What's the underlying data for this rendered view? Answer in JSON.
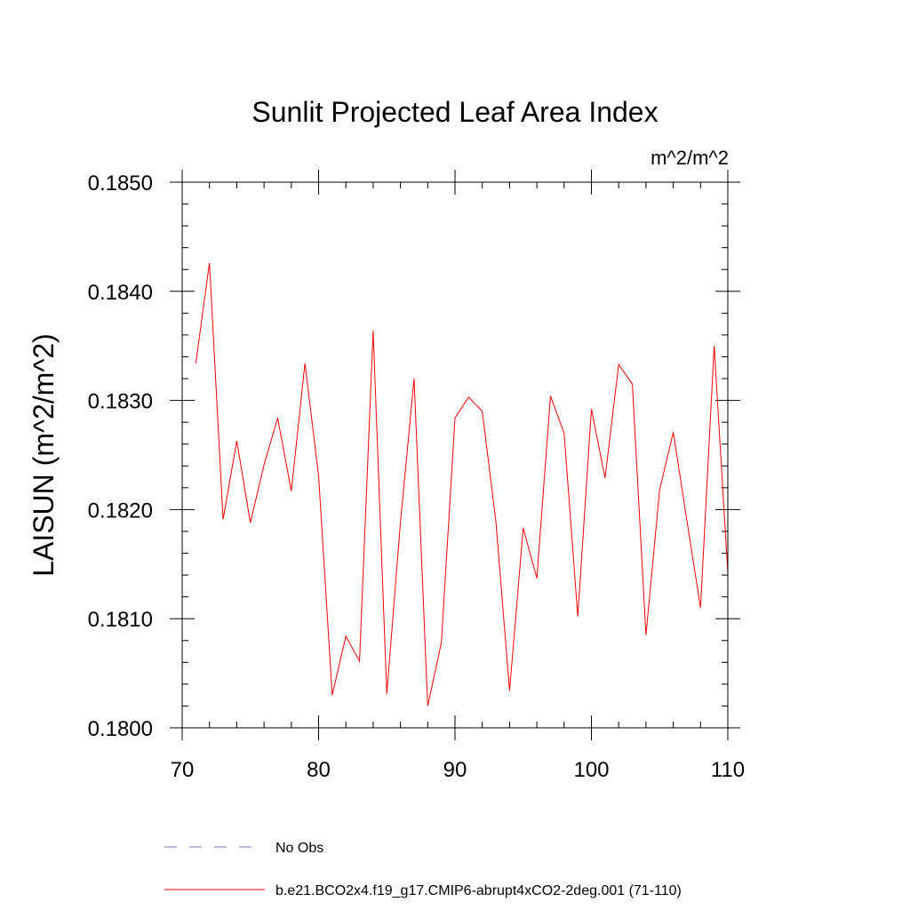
{
  "chart_data": {
    "type": "line",
    "title": "Sunlit Projected Leaf Area Index",
    "units": "m^2/m^2",
    "ylabel": "LAISUN  (m^2/m^2)",
    "xlabel": "",
    "xlim": [
      70,
      110
    ],
    "ylim": [
      0.18,
      0.185
    ],
    "xticks": [
      "70",
      "80",
      "90",
      "100",
      "110"
    ],
    "yticks": [
      "0.1800",
      "0.1810",
      "0.1820",
      "0.1830",
      "0.1840",
      "0.1850"
    ],
    "grid": false,
    "legend_position": "bottom",
    "series": [
      {
        "name": "No Obs",
        "color": "#7b74c4",
        "style": "dashed",
        "x": [],
        "values": []
      },
      {
        "name": "b.e21.BCO2x4.f19_g17.CMIP6-abrupt4xCO2-2deg.001 (71-110)",
        "color": "#ff0000",
        "style": "solid",
        "x": [
          71,
          72,
          73,
          74,
          75,
          76,
          77,
          78,
          79,
          80,
          81,
          82,
          83,
          84,
          85,
          86,
          87,
          88,
          89,
          90,
          91,
          92,
          93,
          94,
          95,
          96,
          97,
          98,
          99,
          100,
          101,
          102,
          103,
          104,
          105,
          106,
          107,
          108,
          109,
          110
        ],
        "values": [
          0.18334,
          0.18426,
          0.18191,
          0.18263,
          0.18188,
          0.18241,
          0.18284,
          0.18217,
          0.18334,
          0.18231,
          0.1803,
          0.18084,
          0.18061,
          0.18364,
          0.18031,
          0.18188,
          0.1832,
          0.1802,
          0.18078,
          0.18284,
          0.18303,
          0.1829,
          0.18189,
          0.18034,
          0.18183,
          0.18137,
          0.18304,
          0.1827,
          0.18102,
          0.18292,
          0.18229,
          0.18333,
          0.18315,
          0.18085,
          0.18218,
          0.18271,
          0.1819,
          0.1811,
          0.1835,
          0.18142
        ]
      }
    ]
  }
}
